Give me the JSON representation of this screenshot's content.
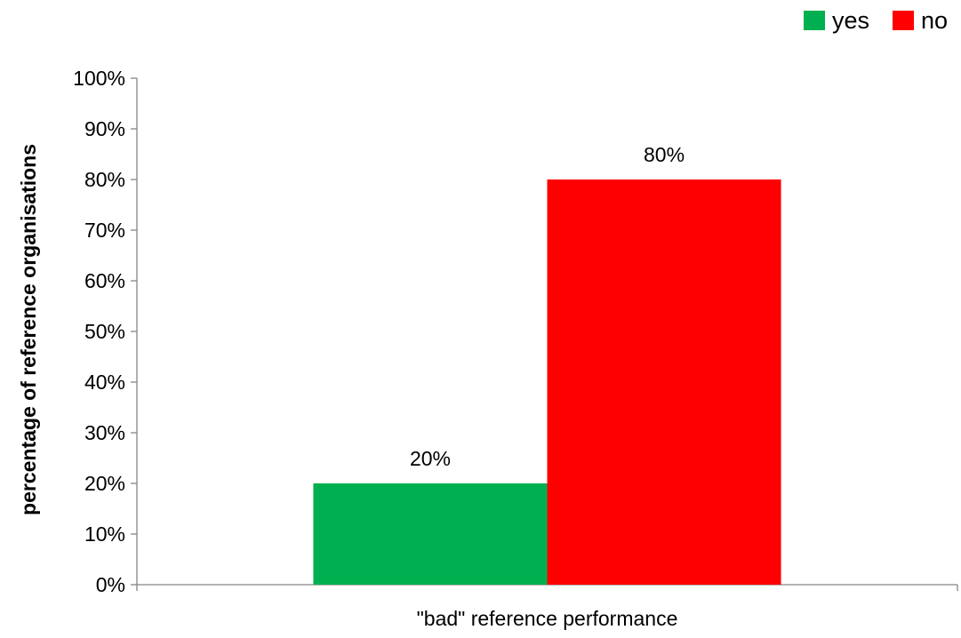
{
  "chart_data": {
    "type": "bar",
    "categories": [
      "\"bad\" reference performance"
    ],
    "series": [
      {
        "name": "yes",
        "values": [
          20
        ],
        "color": "#00B050"
      },
      {
        "name": "no",
        "values": [
          80
        ],
        "color": "#FF0000"
      }
    ],
    "data_labels": [
      "20%",
      "80%"
    ],
    "xlabel": "\"bad\" reference performance",
    "ylabel": "percentage of reference organisations",
    "ylim": [
      0,
      100
    ],
    "yticks": [
      "0%",
      "10%",
      "20%",
      "30%",
      "40%",
      "50%",
      "60%",
      "70%",
      "80%",
      "90%",
      "100%"
    ],
    "grid": false,
    "legend_position": "top-right"
  }
}
